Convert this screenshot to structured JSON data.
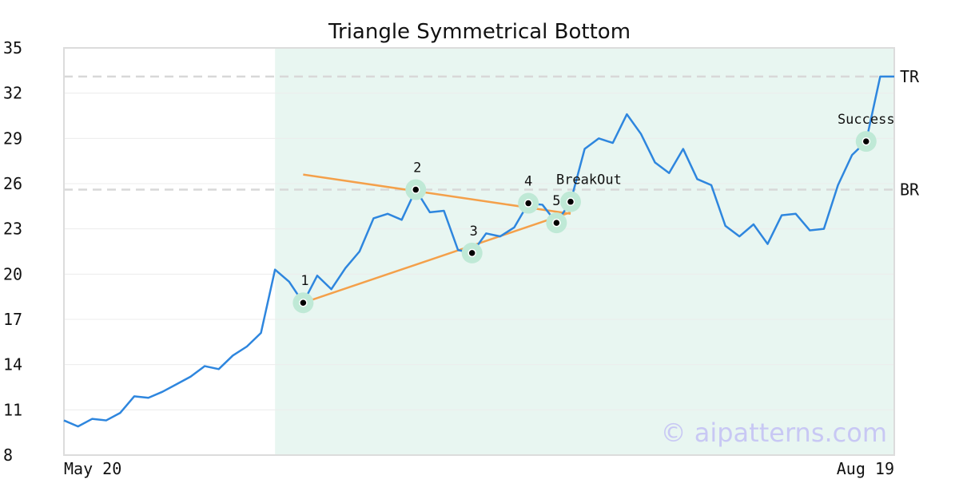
{
  "chart_data": {
    "type": "line",
    "title": "Triangle Symmetrical Bottom",
    "xlabel": "",
    "ylabel": "",
    "x_tick_labels": [
      "May 20",
      "Aug 19"
    ],
    "x_range": [
      0,
      59
    ],
    "ylim": [
      8,
      35
    ],
    "y_ticks": [
      8,
      11,
      14,
      17,
      20,
      23,
      26,
      29,
      32,
      35
    ],
    "grid": true,
    "legend": "none",
    "colors": {
      "price": "#2e86de",
      "trendline": "#f4a04a",
      "highlight": "#e8f6f1",
      "marker_ring": "#bfe9d6",
      "reference": "#d8d8d8"
    },
    "highlight_region": [
      15,
      59
    ],
    "series": [
      {
        "values": [
          10.3,
          9.9,
          10.4,
          10.3,
          10.8,
          11.9,
          11.8,
          12.2,
          12.7,
          13.2,
          13.9,
          13.7,
          14.6,
          15.2,
          16.1,
          20.3,
          19.5,
          18.1,
          19.9,
          19.0,
          20.4,
          21.5,
          23.7,
          24.0,
          23.6,
          25.6,
          24.1,
          24.2,
          21.6,
          21.4,
          22.7,
          22.5,
          23.1,
          24.7,
          24.6,
          23.4,
          24.8,
          28.3,
          29.0,
          28.7,
          30.6,
          29.3,
          27.4,
          26.7,
          28.3,
          26.3,
          25.9,
          23.2,
          22.5,
          23.3,
          22.0,
          23.9,
          24.0,
          22.9,
          23.0,
          25.9,
          27.9,
          28.8,
          33.1,
          33.1
        ]
      }
    ],
    "pattern_points": [
      {
        "label": "1",
        "x": 17,
        "y": 18.1
      },
      {
        "label": "2",
        "x": 25,
        "y": 25.6
      },
      {
        "label": "3",
        "x": 29,
        "y": 21.4
      },
      {
        "label": "4",
        "x": 33,
        "y": 24.7
      },
      {
        "label": "5",
        "x": 35,
        "y": 23.4
      },
      {
        "label": "BreakOut",
        "x": 36,
        "y": 24.8
      },
      {
        "label": "Success",
        "x": 57,
        "y": 28.8
      }
    ],
    "trendlines": [
      {
        "x1": 17,
        "y1": 26.6,
        "x2": 36,
        "y2": 24.0
      },
      {
        "x1": 17,
        "y1": 18.1,
        "x2": 36,
        "y2": 24.1
      }
    ],
    "reference_lines": [
      {
        "label": "TR",
        "y": 33.1
      },
      {
        "label": "BR",
        "y": 25.6
      }
    ],
    "watermark": "© aipatterns.com"
  }
}
